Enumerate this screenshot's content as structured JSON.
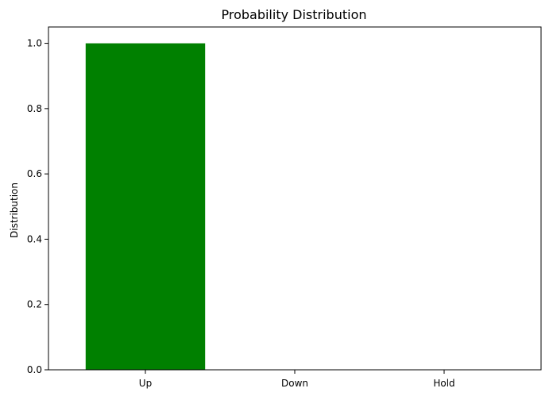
{
  "chart_data": {
    "type": "bar",
    "title": "Probability Distribution",
    "xlabel": "",
    "ylabel": "Distribution",
    "categories": [
      "Up",
      "Down",
      "Hold"
    ],
    "values": [
      1.0,
      0.0,
      0.0
    ],
    "ylim": [
      0,
      1.05
    ],
    "yticks": [
      "0.0",
      "0.2",
      "0.4",
      "0.6",
      "0.8",
      "1.0"
    ],
    "bar_colors": [
      "#008000",
      "#ff0000",
      "#808080"
    ],
    "grid": false,
    "legend": "none"
  }
}
